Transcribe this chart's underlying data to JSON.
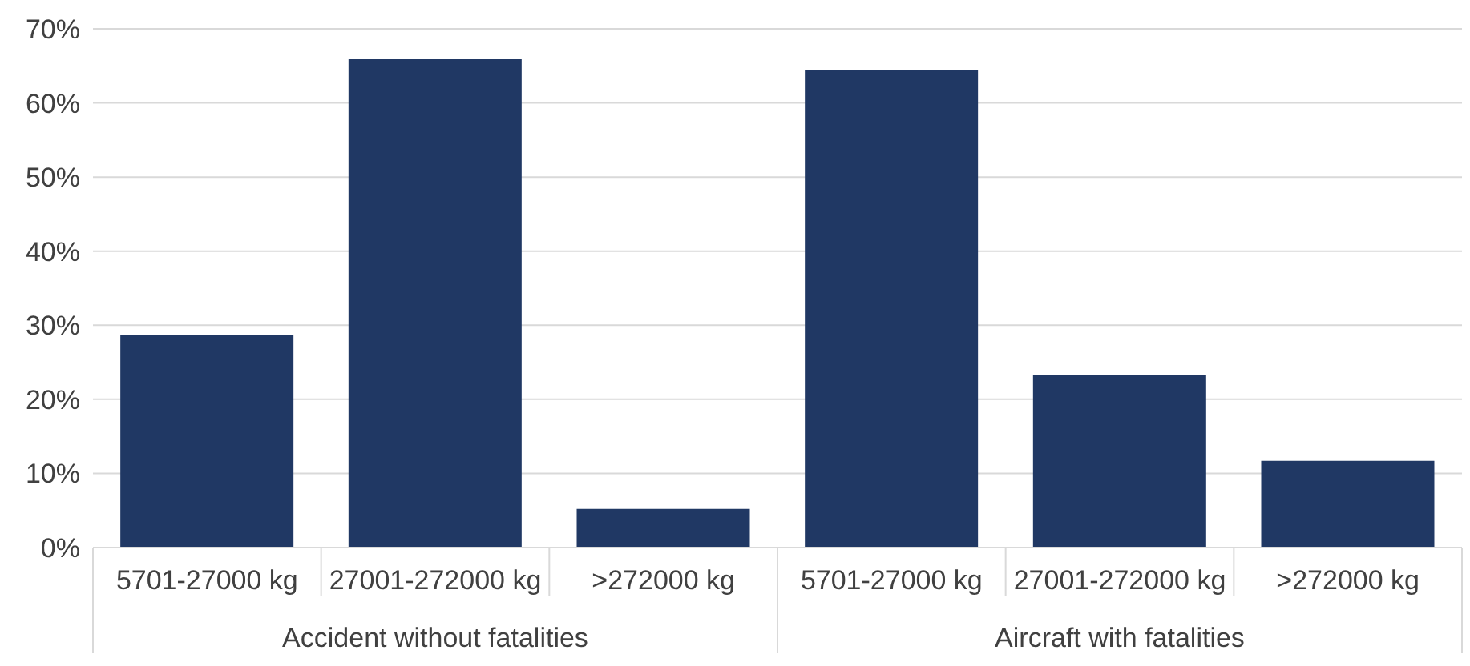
{
  "chart_data": {
    "type": "bar",
    "categories": [
      "5701-27000 kg",
      "27001-272000 kg",
      ">272000 kg",
      "5701-27000 kg",
      "27001-272000 kg",
      ">272000 kg"
    ],
    "values": [
      28.7,
      65.9,
      5.2,
      64.4,
      23.3,
      11.7
    ],
    "color": "#203864",
    "ylim": [
      0,
      70
    ],
    "yticks": [
      {
        "value": 0,
        "label": "0%"
      },
      {
        "value": 10,
        "label": "10%"
      },
      {
        "value": 20,
        "label": "20%"
      },
      {
        "value": 30,
        "label": "30%"
      },
      {
        "value": 40,
        "label": "40%"
      },
      {
        "value": 50,
        "label": "50%"
      },
      {
        "value": 60,
        "label": "60%"
      },
      {
        "value": 70,
        "label": "70%"
      }
    ],
    "grid": "y",
    "annotations": [
      "Accident without fatalities",
      "Aircraft with fatalities"
    ]
  }
}
